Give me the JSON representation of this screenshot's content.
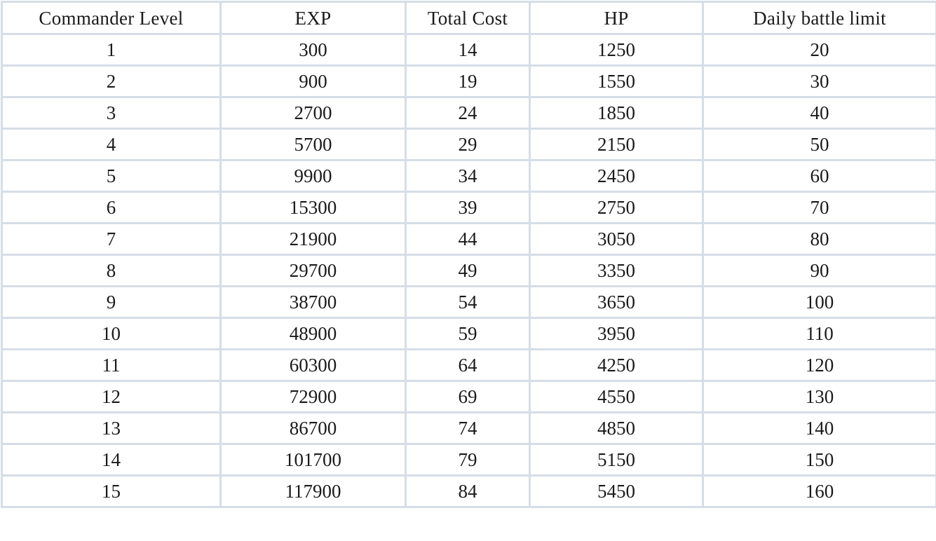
{
  "table": {
    "headers": [
      "Commander Level",
      "EXP",
      "Total Cost",
      "HP",
      "Daily battle limit"
    ],
    "rows": [
      [
        "1",
        "300",
        "14",
        "1250",
        "20"
      ],
      [
        "2",
        "900",
        "19",
        "1550",
        "30"
      ],
      [
        "3",
        "2700",
        "24",
        "1850",
        "40"
      ],
      [
        "4",
        "5700",
        "29",
        "2150",
        "50"
      ],
      [
        "5",
        "9900",
        "34",
        "2450",
        "60"
      ],
      [
        "6",
        "15300",
        "39",
        "2750",
        "70"
      ],
      [
        "7",
        "21900",
        "44",
        "3050",
        "80"
      ],
      [
        "8",
        "29700",
        "49",
        "3350",
        "90"
      ],
      [
        "9",
        "38700",
        "54",
        "3650",
        "100"
      ],
      [
        "10",
        "48900",
        "59",
        "3950",
        "110"
      ],
      [
        "11",
        "60300",
        "64",
        "4250",
        "120"
      ],
      [
        "12",
        "72900",
        "69",
        "4550",
        "130"
      ],
      [
        "13",
        "86700",
        "74",
        "4850",
        "140"
      ],
      [
        "14",
        "101700",
        "79",
        "5150",
        "150"
      ],
      [
        "15",
        "117900",
        "84",
        "5450",
        "160"
      ]
    ]
  },
  "colors": {
    "border": "#d6dde8",
    "text": "#1a1a1a",
    "background": "#ffffff"
  }
}
